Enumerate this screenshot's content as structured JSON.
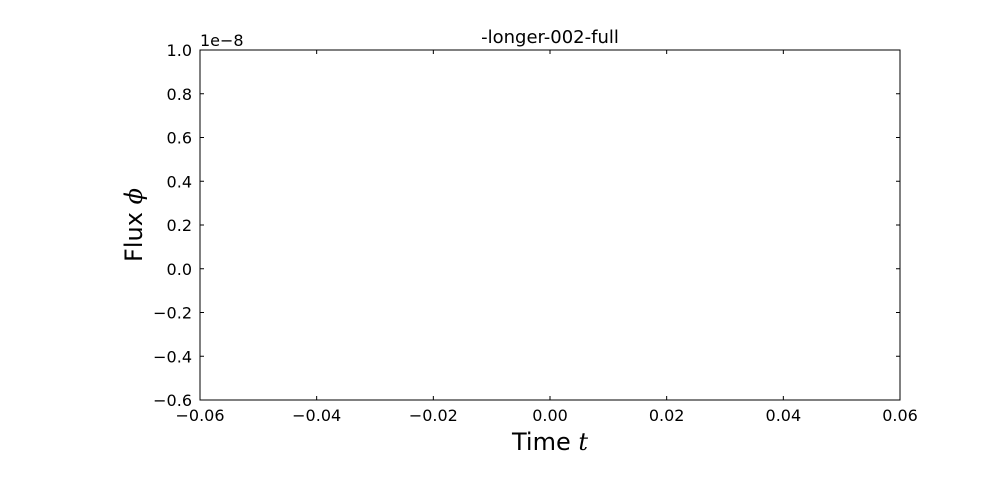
{
  "chart_data": {
    "type": "line",
    "title": "-longer-002-full",
    "xlabel": "Time",
    "xlabel_symbol": "t",
    "ylabel": "Flux",
    "ylabel_symbol": "ϕ",
    "y_offset_label": "1e−8",
    "xlim": [
      -0.06,
      0.06
    ],
    "ylim": [
      -0.6,
      1.0
    ],
    "x_ticks": [
      -0.06,
      -0.04,
      -0.02,
      0.0,
      0.02,
      0.04,
      0.06
    ],
    "y_ticks": [
      -0.6,
      -0.4,
      -0.2,
      0.0,
      0.2,
      0.4,
      0.6,
      0.8,
      1.0
    ],
    "x_tick_labels": [
      "−0.06",
      "−0.04",
      "−0.02",
      "0.00",
      "0.02",
      "0.04",
      "0.06"
    ],
    "y_tick_labels": [
      "−0.6",
      "−0.4",
      "−0.2",
      "0.0",
      "0.2",
      "0.4",
      "0.6",
      "0.8",
      "1.0"
    ],
    "grid": false,
    "series": []
  }
}
